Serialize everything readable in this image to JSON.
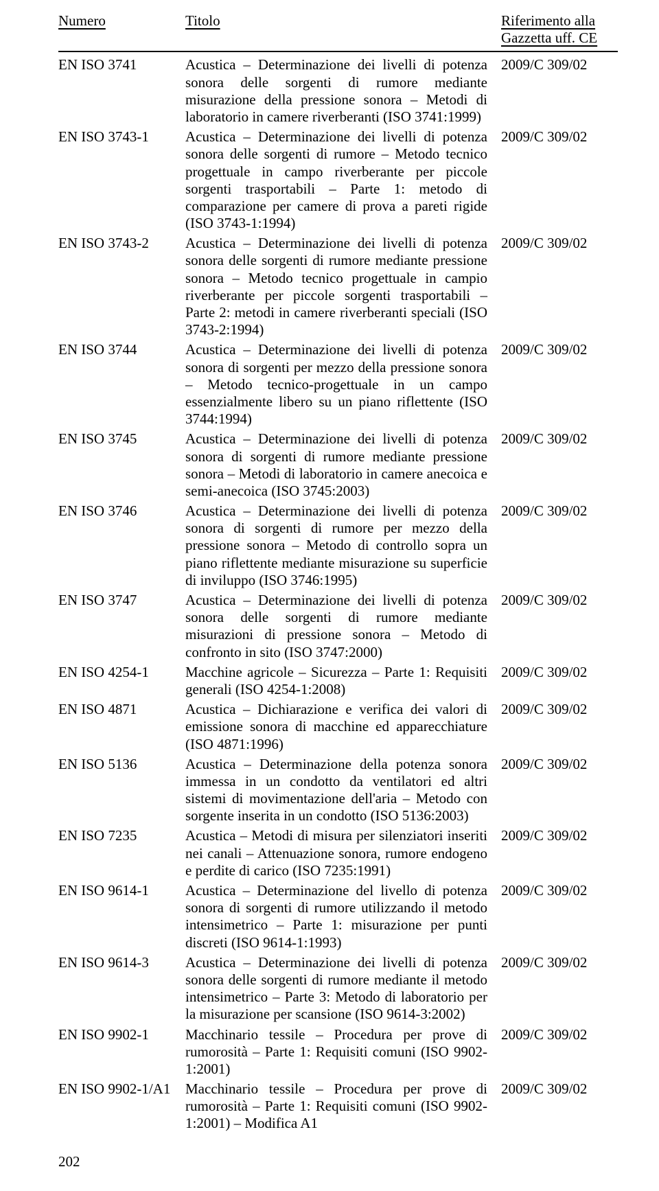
{
  "header": {
    "numero": "Numero",
    "titolo": "Titolo",
    "riferimento_l1": "Riferimento alla",
    "riferimento_l2": "Gazzetta uff. CE"
  },
  "rows": [
    {
      "num": "EN ISO 3741",
      "tit": "Acustica – Determinazione dei livelli di potenza sonora delle sorgenti di rumore mediante misurazione della pressione sonora – Metodi di laboratorio in camere riverberanti (ISO 3741:1999)",
      "ref": "2009/C 309/02"
    },
    {
      "num": "EN ISO 3743-1",
      "tit": "Acustica – Determinazione dei livelli di potenza sonora delle sorgenti di rumore – Metodo tecnico progettuale in campo riverberante per piccole sorgenti trasportabili – Parte 1: metodo di comparazione per camere di prova a pareti rigide (ISO 3743-1:1994)",
      "ref": "2009/C 309/02"
    },
    {
      "num": "EN ISO 3743-2",
      "tit": "Acustica – Determinazione dei livelli di potenza sonora delle sorgenti di rumore mediante pressione sonora – Metodo tecnico progettuale in campio riverberante per piccole sorgenti trasportabili – Parte 2: metodi in camere riverberanti speciali (ISO 3743-2:1994)",
      "ref": "2009/C 309/02"
    },
    {
      "num": "EN ISO 3744",
      "tit": "Acustica – Determinazione dei livelli di potenza sonora di sorgenti per mezzo della pressione sonora – Metodo tecnico-progettuale in un campo essenzialmente libero su un piano riflettente (ISO 3744:1994)",
      "ref": "2009/C 309/02"
    },
    {
      "num": "EN ISO 3745",
      "tit": "Acustica – Determinazione dei livelli di potenza sonora di sorgenti di rumore mediante pressione sonora – Metodi di laboratorio in camere anecoica e semi-anecoica (ISO 3745:2003)",
      "ref": "2009/C 309/02"
    },
    {
      "num": "EN ISO 3746",
      "tit": "Acustica – Determinazione dei livelli di potenza sonora di sorgenti di rumore per mezzo della pressione sonora – Metodo di controllo sopra un piano riflettente mediante misurazione su superficie di inviluppo (ISO 3746:1995)",
      "ref": "2009/C 309/02"
    },
    {
      "num": "EN ISO 3747",
      "tit": "Acustica – Determinazione dei livelli di potenza sonora delle sorgenti di rumore mediante misurazioni di pressione sonora – Metodo di confronto in sito (ISO 3747:2000)",
      "ref": "2009/C 309/02"
    },
    {
      "num": "EN ISO 4254-1",
      "tit": "Macchine agricole – Sicurezza – Parte 1: Requisiti generali (ISO 4254-1:2008)",
      "ref": "2009/C 309/02"
    },
    {
      "num": "EN ISO 4871",
      "tit": "Acustica – Dichiarazione e verifica dei valori di emissione sonora di macchine ed apparecchiature (ISO 4871:1996)",
      "ref": "2009/C 309/02"
    },
    {
      "num": "EN ISO 5136",
      "tit": "Acustica – Determinazione della potenza sonora immessa in un condotto da ventilatori ed altri sistemi di movimentazione dell'aria – Metodo con sorgente inserita in un condotto (ISO 5136:2003)",
      "ref": "2009/C 309/02"
    },
    {
      "num": "EN ISO 7235",
      "tit": "Acustica – Metodi di misura per silenziatori inseriti nei canali – Attenuazione sonora, rumore endogeno e perdite di carico (ISO 7235:1991)",
      "ref": "2009/C 309/02"
    },
    {
      "num": "EN ISO 9614-1",
      "tit": "Acustica – Determinazione del livello di potenza sonora di sorgenti di rumore utilizzando il metodo intensimetrico – Parte 1: misurazione per punti discreti (ISO 9614-1:1993)",
      "ref": "2009/C 309/02"
    },
    {
      "num": "EN ISO 9614-3",
      "tit": "Acustica – Determinazione dei livelli di potenza sonora delle sorgenti di rumore mediante il metodo intensimetrico – Parte 3: Metodo di laboratorio per la misurazione per scansione (ISO 9614-3:2002)",
      "ref": "2009/C 309/02"
    },
    {
      "num": "EN ISO 9902-1",
      "tit": "Macchinario tessile – Procedura per prove di rumorosità – Parte 1: Requisiti comuni (ISO 9902-1:2001)",
      "ref": "2009/C 309/02"
    },
    {
      "num": "EN ISO 9902-1/A1",
      "tit": "Macchinario tessile – Procedura per prove di rumorosità – Parte 1: Requisiti comuni (ISO 9902-1:2001) – Modifica A1",
      "ref": "2009/C 309/02"
    }
  ],
  "footer": {
    "page_number": "202"
  }
}
